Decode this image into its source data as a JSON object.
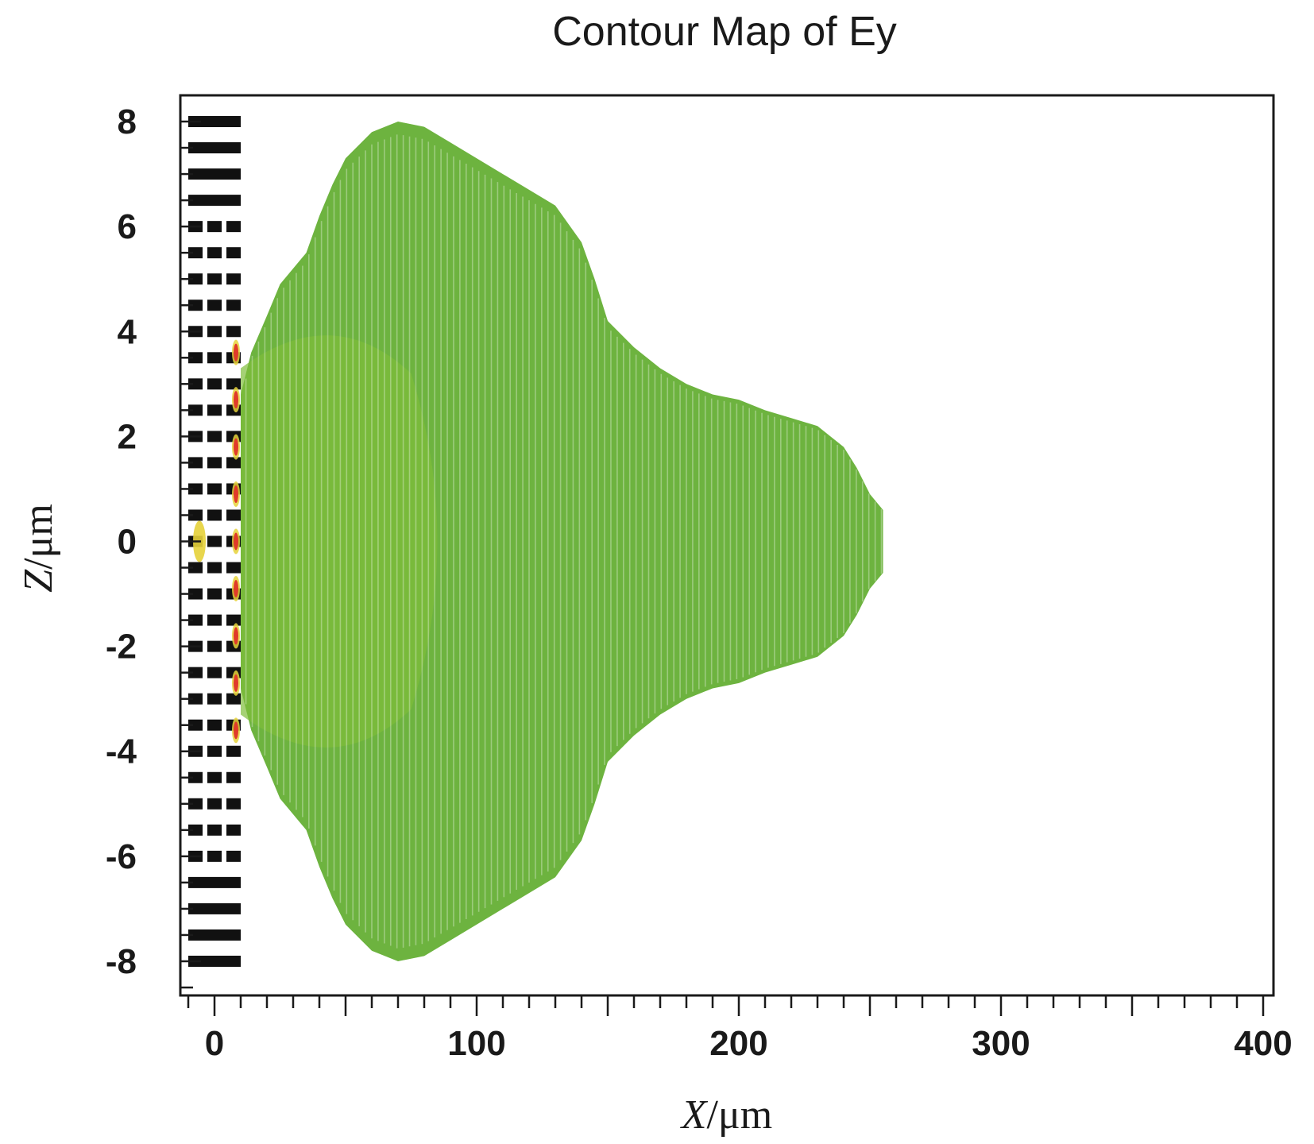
{
  "chart_data": {
    "type": "heatmap",
    "title": "Contour Map of Ey",
    "xlabel_var": "X",
    "xlabel_unit": "/μm",
    "ylabel_var": "Z",
    "ylabel_unit": "/μm",
    "xlim": [
      -12,
      400
    ],
    "ylim": [
      -8.5,
      8.5
    ],
    "x_ticks": [
      0,
      100,
      200,
      300,
      400
    ],
    "y_ticks": [
      8,
      6,
      4,
      2,
      0,
      -2,
      -4,
      -6,
      -8
    ],
    "grid": false,
    "colors": {
      "field": "#6db33f",
      "field_core": "#7fbd3a",
      "grating": "#111111",
      "hotspot": "#e03a2a",
      "hotspot_glow": "#e6d23a",
      "frame": "#1a1a1a"
    },
    "grating": {
      "x_range": [
        -10,
        10
      ],
      "z_range": [
        -8,
        8
      ],
      "period": 0.5
    },
    "field_envelope": [
      [
        10,
        2.8
      ],
      [
        14,
        3.6
      ],
      [
        20,
        4.3
      ],
      [
        25,
        4.9
      ],
      [
        35,
        5.5
      ],
      [
        40,
        6.2
      ],
      [
        45,
        6.8
      ],
      [
        50,
        7.3
      ],
      [
        60,
        7.8
      ],
      [
        70,
        8.0
      ],
      [
        80,
        7.9
      ],
      [
        90,
        7.6
      ],
      [
        100,
        7.3
      ],
      [
        110,
        7.0
      ],
      [
        120,
        6.7
      ],
      [
        130,
        6.4
      ],
      [
        140,
        5.7
      ],
      [
        145,
        5.0
      ],
      [
        150,
        4.2
      ],
      [
        160,
        3.7
      ],
      [
        170,
        3.3
      ],
      [
        180,
        3.0
      ],
      [
        190,
        2.8
      ],
      [
        200,
        2.7
      ],
      [
        210,
        2.5
      ],
      [
        220,
        2.35
      ],
      [
        230,
        2.2
      ],
      [
        240,
        1.8
      ],
      [
        245,
        1.4
      ],
      [
        250,
        0.9
      ],
      [
        255,
        0.6
      ]
    ]
  }
}
